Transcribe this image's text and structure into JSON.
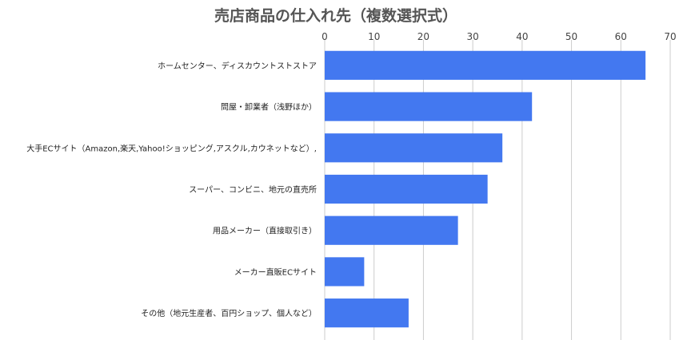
{
  "chart_data": {
    "type": "bar",
    "orientation": "horizontal",
    "title": "売店商品の仕入れ先（複数選択式）",
    "categories": [
      "ホームセンター、ディスカウントストストア",
      "問屋・卸業者（浅野ほか）",
      "大手ECサイト（Amazon,楽天,Yahoo!ショッピング,アスクル,カウネットなど）,",
      "スーパー、コンビニ、地元の直売所",
      "用品メーカー（直接取引き）",
      "メーカー直販ECサイト",
      "その他（地元生産者、百円ショップ、個人など）"
    ],
    "values": [
      65,
      42,
      36,
      33,
      27,
      8,
      17
    ],
    "xlim": [
      0,
      70
    ],
    "xticks": [
      0,
      10,
      20,
      30,
      40,
      50,
      60,
      70
    ],
    "x_axis_position": "top",
    "grid": true,
    "bar_color": "#4378f0"
  }
}
